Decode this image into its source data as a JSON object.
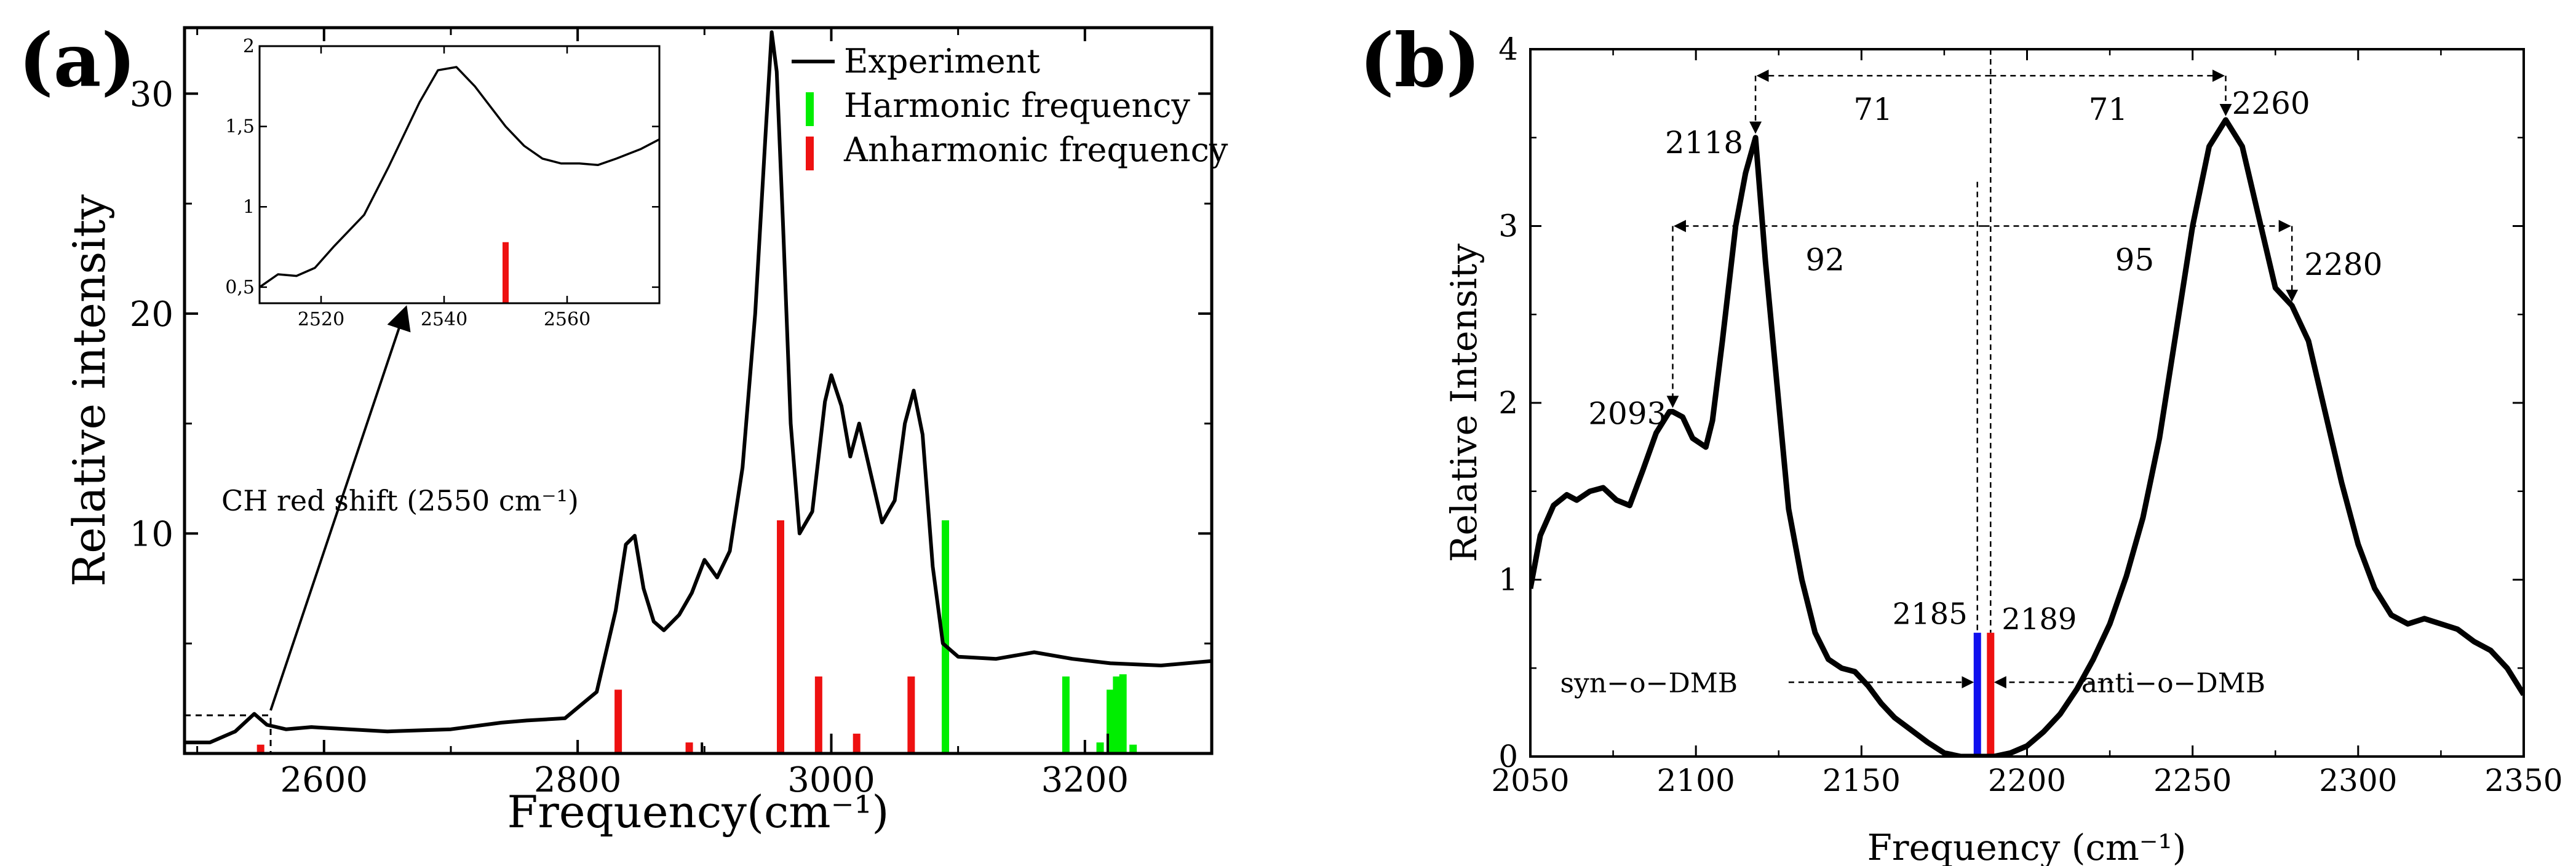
{
  "chart_data": [
    {
      "type": "line",
      "panel_label": "(a)",
      "xlabel": "Frequency(cm⁻¹)",
      "ylabel": "Relative intensity",
      "xlim": [
        2490,
        3300
      ],
      "ylim": [
        0,
        33
      ],
      "xticks": [
        2600,
        2800,
        3000,
        3200
      ],
      "yticks": [
        10,
        20,
        30
      ],
      "legend_position": "top-right",
      "legend": [
        {
          "name": "Experiment",
          "color": "#000000"
        },
        {
          "name": "Harmonic frequency",
          "color": "#00ee00"
        },
        {
          "name": "Anharmonic frequency",
          "color": "#ee1111"
        }
      ],
      "experiment_series": {
        "name": "Experiment",
        "x": [
          2490,
          2510,
          2530,
          2545,
          2555,
          2570,
          2590,
          2620,
          2650,
          2700,
          2740,
          2760,
          2790,
          2815,
          2830,
          2838,
          2845,
          2852,
          2860,
          2868,
          2880,
          2890,
          2900,
          2910,
          2920,
          2930,
          2940,
          2948,
          2953,
          2957,
          2962,
          2968,
          2975,
          2985,
          2995,
          3000,
          3008,
          3015,
          3022,
          3030,
          3040,
          3050,
          3058,
          3065,
          3072,
          3080,
          3088,
          3100,
          3130,
          3160,
          3190,
          3220,
          3260,
          3300
        ],
        "y": [
          0.5,
          0.5,
          1,
          1.8,
          1.3,
          1.1,
          1.2,
          1.1,
          1,
          1.1,
          1.4,
          1.5,
          1.6,
          2.8,
          6.5,
          9.5,
          9.9,
          7.5,
          6,
          5.6,
          6.3,
          7.3,
          8.8,
          8,
          9.2,
          13,
          20,
          28,
          32.8,
          31,
          24,
          15,
          10,
          11,
          16,
          17.2,
          15.8,
          13.5,
          15,
          13,
          10.5,
          11.5,
          15,
          16.5,
          14.5,
          8.5,
          5,
          4.4,
          4.3,
          4.6,
          4.3,
          4.1,
          4,
          4.2
        ]
      },
      "harmonic_frequencies": {
        "x": [
          3090,
          3185,
          3212,
          3220,
          3225,
          3228,
          3230,
          3238
        ],
        "y": [
          10.6,
          3.5,
          0.5,
          2.9,
          3.5,
          1.2,
          3.6,
          0.4
        ]
      },
      "anharmonic_frequencies": {
        "x": [
          2550,
          2832,
          2888,
          2960,
          2990,
          3020,
          3063
        ],
        "y": [
          0.4,
          2.9,
          0.5,
          10.6,
          3.5,
          0.9,
          3.5
        ]
      },
      "small_black_sticks": {
        "x": [
          2898,
          3000,
          3218
        ],
        "y": [
          0.5,
          0.9,
          0.9
        ]
      },
      "annotation": "CH red shift (2550 cm⁻¹)",
      "inset": {
        "xlim": [
          2510,
          2575
        ],
        "ylim": [
          0.4,
          2.0
        ],
        "xticks": [
          2520,
          2540,
          2560
        ],
        "yticks": [
          0.5,
          1,
          1.5,
          2
        ],
        "ytick_labels": [
          "0,5",
          "1",
          "1,5",
          "2"
        ],
        "experiment_series": {
          "x": [
            2510,
            2513,
            2516,
            2519,
            2522,
            2527,
            2531,
            2536,
            2539,
            2542,
            2545,
            2547,
            2550,
            2553,
            2556,
            2559,
            2562,
            2565,
            2568,
            2572,
            2575
          ],
          "y": [
            0.5,
            0.58,
            0.57,
            0.62,
            0.75,
            0.95,
            1.25,
            1.65,
            1.85,
            1.87,
            1.75,
            1.65,
            1.5,
            1.38,
            1.3,
            1.27,
            1.27,
            1.26,
            1.3,
            1.36,
            1.42
          ]
        },
        "anharmonic_stick": {
          "x": 2550,
          "y": 0.78
        }
      }
    },
    {
      "type": "line",
      "panel_label": "(b)",
      "xlabel": "Frequency (cm⁻¹)",
      "ylabel": "Relative Intensity",
      "xlim": [
        2050,
        2350
      ],
      "ylim": [
        0,
        4
      ],
      "xticks": [
        2050,
        2100,
        2150,
        2200,
        2250,
        2300,
        2350
      ],
      "yticks": [
        0,
        1,
        2,
        3,
        4
      ],
      "spectrum": {
        "x": [
          2050,
          2053,
          2057,
          2061,
          2064,
          2068,
          2072,
          2076,
          2080,
          2084,
          2088,
          2092,
          2093,
          2096,
          2099,
          2103,
          2105,
          2108,
          2112,
          2115,
          2118,
          2121,
          2124,
          2128,
          2132,
          2136,
          2140,
          2144,
          2148,
          2152,
          2156,
          2160,
          2165,
          2170,
          2175,
          2180,
          2185,
          2190,
          2195,
          2200,
          2205,
          2210,
          2215,
          2220,
          2225,
          2230,
          2235,
          2240,
          2245,
          2250,
          2255,
          2260,
          2265,
          2270,
          2275,
          2280,
          2285,
          2290,
          2295,
          2300,
          2305,
          2310,
          2315,
          2320,
          2325,
          2330,
          2335,
          2340,
          2345,
          2350
        ],
        "y": [
          0.95,
          1.25,
          1.42,
          1.48,
          1.45,
          1.5,
          1.52,
          1.45,
          1.42,
          1.62,
          1.83,
          1.95,
          1.95,
          1.92,
          1.8,
          1.75,
          1.9,
          2.35,
          3,
          3.3,
          3.5,
          2.8,
          2.2,
          1.4,
          1,
          0.7,
          0.55,
          0.5,
          0.48,
          0.4,
          0.3,
          0.22,
          0.15,
          0.08,
          0.02,
          0,
          0,
          0,
          0.02,
          0.06,
          0.14,
          0.24,
          0.38,
          0.55,
          0.75,
          1.02,
          1.35,
          1.8,
          2.4,
          3,
          3.45,
          3.6,
          3.45,
          3.05,
          2.65,
          2.55,
          2.35,
          1.95,
          1.55,
          1.2,
          0.95,
          0.8,
          0.75,
          0.78,
          0.75,
          0.72,
          0.65,
          0.6,
          0.5,
          0.35
        ]
      },
      "peak_labels": [
        {
          "x": 2093,
          "y": 1.95,
          "label": "2093"
        },
        {
          "x": 2118,
          "y": 3.5,
          "label": "2118"
        },
        {
          "x": 2260,
          "y": 3.6,
          "label": "2260"
        },
        {
          "x": 2280,
          "y": 2.55,
          "label": "2280"
        }
      ],
      "sticks": [
        {
          "x": 2185,
          "y": 0.7,
          "color": "#1010ee",
          "label": "2185",
          "name": "syn−o−DMB"
        },
        {
          "x": 2189,
          "y": 0.7,
          "color": "#ee1111",
          "label": "2189",
          "name": "anti−o−DMB"
        }
      ],
      "spacings": [
        {
          "from": 2118,
          "to": 2189,
          "y": 3.85,
          "label": "71"
        },
        {
          "from": 2189,
          "to": 2260,
          "y": 3.85,
          "label": "71"
        },
        {
          "from": 2093,
          "to": 2185,
          "y": 3.0,
          "label": "92"
        },
        {
          "from": 2185,
          "to": 2280,
          "y": 3.0,
          "label": "95"
        }
      ],
      "stick_labels": [
        "syn−o−DMB",
        "anti−o−DMB"
      ]
    }
  ]
}
